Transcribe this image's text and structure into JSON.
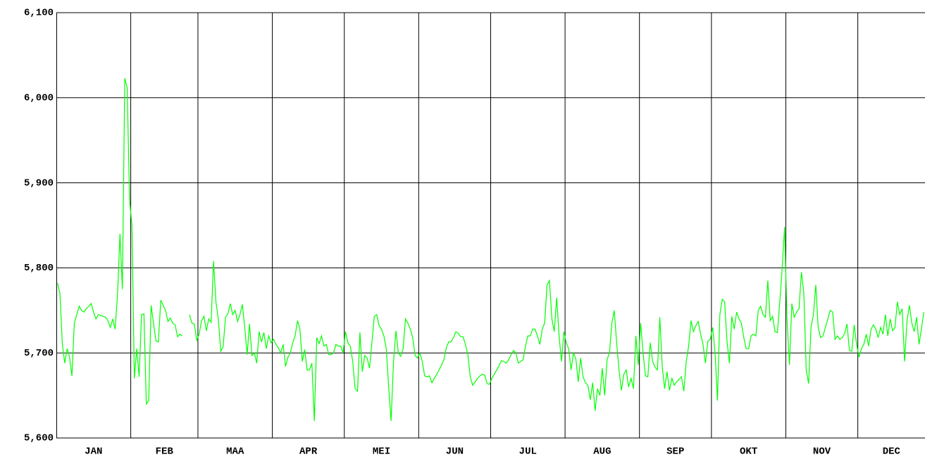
{
  "chart_data": {
    "type": "line",
    "color": "#00ff00",
    "grid": true,
    "categories": [
      "JAN",
      "FEB",
      "MAA",
      "APR",
      "MEI",
      "JUN",
      "JUL",
      "AUG",
      "SEP",
      "OKT",
      "NOV",
      "DEC"
    ],
    "values": [
      [
        5782,
        5770,
        5710,
        5688,
        5705,
        5695,
        5673,
        5735,
        5745,
        5755,
        5750,
        5748,
        5752,
        5755,
        5758,
        5748,
        5740,
        5745,
        5744,
        5743,
        5742,
        5738,
        5730,
        5740,
        5728,
        5770,
        5840,
        5775,
        6023,
        6012,
        5880
      ],
      [
        5850,
        5670,
        5705,
        5672,
        5745,
        5746,
        5640,
        5644,
        5756,
        5735,
        5714,
        5713,
        5762,
        5756,
        5750,
        5737,
        5741,
        5735,
        5733,
        5719,
        5722,
        5720,
        null,
        null,
        5745,
        5735,
        5734,
        5715
      ],
      [
        5722,
        5738,
        5743,
        5726,
        5740,
        5736,
        5808,
        5760,
        5740,
        5702,
        5707,
        5742,
        5746,
        5758,
        5745,
        5750,
        5737,
        5745,
        5757,
        5730,
        5698,
        5734,
        5697,
        5700,
        5688,
        5725,
        5713,
        5724,
        5705,
        5720,
        5712
      ],
      [
        5716,
        5710,
        5706,
        5700,
        5710,
        5684,
        5695,
        5700,
        5712,
        5720,
        5738,
        5728,
        5690,
        5704,
        5680,
        5680,
        5688,
        5620,
        5718,
        5711,
        5720,
        5708,
        5710,
        5698,
        5698,
        5700,
        5710,
        5708,
        5708,
        5700
      ],
      [
        5725,
        5712,
        5708,
        5690,
        5658,
        5655,
        5724,
        5678,
        5697,
        5694,
        5682,
        5712,
        5743,
        5745,
        5732,
        5728,
        5720,
        5705,
        5660,
        5620,
        5690,
        5726,
        5700,
        5696,
        5705,
        5740,
        5735,
        5728,
        5718,
        5697,
        5694
      ],
      [
        5700,
        5690,
        5673,
        5672,
        5673,
        5665,
        5670,
        5675,
        5680,
        5686,
        5692,
        5706,
        5713,
        5713,
        5718,
        5725,
        5723,
        5719,
        5719,
        5710,
        5698,
        5672,
        5662,
        5666,
        5670,
        5673,
        5675,
        5674,
        5664,
        5663
      ],
      [
        5670,
        5675,
        5680,
        5685,
        5691,
        5690,
        5688,
        5692,
        5698,
        5703,
        5700,
        5688,
        5690,
        5692,
        5708,
        5720,
        5720,
        5728,
        5728,
        5720,
        5710,
        5728,
        5735,
        5780,
        5785,
        5740,
        5725,
        5765,
        5720,
        5690,
        5725
      ],
      [
        5712,
        5705,
        5680,
        5700,
        5693,
        5666,
        5694,
        5672,
        5665,
        5662,
        5645,
        5665,
        5632,
        5658,
        5650,
        5682,
        5650,
        5692,
        5700,
        5735,
        5750,
        5712,
        5680,
        5656,
        5675,
        5680,
        5660,
        5670,
        5658,
        5720,
        5686
      ],
      [
        5735,
        5700,
        5673,
        5672,
        5712,
        5690,
        5683,
        5680,
        5742,
        5684,
        5658,
        5678,
        5656,
        5670,
        5662,
        5666,
        5669,
        5672,
        5655,
        5690,
        5708,
        5738,
        5725,
        5732,
        5737,
        5722,
        5710,
        5688,
        5714,
        5716
      ],
      [
        5730,
        5700,
        5644,
        5745,
        5763,
        5760,
        5713,
        5688,
        5743,
        5728,
        5748,
        5740,
        5735,
        5718,
        5705,
        5705,
        5720,
        5722,
        5720,
        5750,
        5755,
        5745,
        5742,
        5785,
        5738,
        5743,
        5725,
        5724,
        5760,
        5800,
        5848
      ],
      [
        5738,
        5686,
        5758,
        5742,
        5748,
        5752,
        5795,
        5770,
        5680,
        5664,
        5730,
        5745,
        5780,
        5730,
        5718,
        5720,
        5730,
        5740,
        5750,
        5748,
        5716,
        5720,
        5716,
        5718,
        5723,
        5734,
        5703,
        5702,
        5733,
        5710
      ],
      [
        5695,
        5705,
        5710,
        5722,
        5708,
        5728,
        5733,
        5728,
        5718,
        5730,
        5722,
        5745,
        5720,
        5740,
        5726,
        5730,
        5760,
        5745,
        5752,
        5690,
        5738,
        5756,
        5735,
        5725,
        5742,
        5710,
        5728,
        5748
      ]
    ],
    "ylim": [
      5600,
      6100
    ],
    "yticks": [
      {
        "value": 5600,
        "label": "5,600"
      },
      {
        "value": 5700,
        "label": "5,700"
      },
      {
        "value": 5800,
        "label": "5,800"
      },
      {
        "value": 5900,
        "label": "5,900"
      },
      {
        "value": 6000,
        "label": "6,000"
      },
      {
        "value": 6100,
        "label": "6,100"
      }
    ]
  }
}
